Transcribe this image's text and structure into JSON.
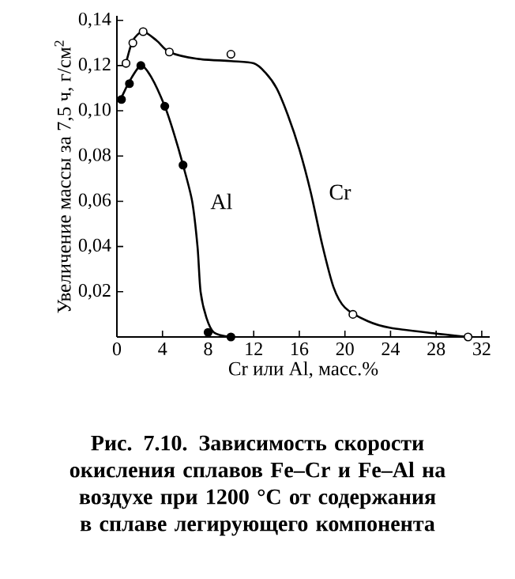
{
  "chart_data": {
    "type": "line",
    "xlabel": "Cr или Al, масс.%",
    "ylabel": "Увеличение массы за 7,5 ч, г/см$^{2}$",
    "xlim": [
      0,
      32.7
    ],
    "ylim": [
      0,
      0.142
    ],
    "xticks": [
      0,
      4,
      8,
      12,
      16,
      20,
      24,
      28,
      32
    ],
    "yticks": [
      {
        "value": 0.02,
        "label": "0,02"
      },
      {
        "value": 0.04,
        "label": "0,04"
      },
      {
        "value": 0.06,
        "label": "0,06"
      },
      {
        "value": 0.08,
        "label": "0,08"
      },
      {
        "value": 0.1,
        "label": "0,10"
      },
      {
        "value": 0.12,
        "label": "0,12"
      },
      {
        "value": 0.14,
        "label": "0,14"
      }
    ],
    "grid": false,
    "series": [
      {
        "name": "Cr",
        "marker": "none",
        "color": "#000000",
        "x": [
          0.8,
          1.4,
          2.3,
          3.5,
          4.6,
          7,
          10,
          12,
          13,
          14,
          15,
          16,
          17,
          18,
          19,
          20,
          22,
          24,
          28,
          30.8
        ],
        "values": [
          0.121,
          0.131,
          0.135,
          0.131,
          0.126,
          0.123,
          0.122,
          0.121,
          0.117,
          0.11,
          0.098,
          0.083,
          0.064,
          0.041,
          0.022,
          0.013,
          0.007,
          0.004,
          0.0015,
          0.0
        ]
      },
      {
        "name": "Al",
        "marker": "none",
        "color": "#000000",
        "x": [
          0,
          0.4,
          1.1,
          2.1,
          3,
          4.2,
          5,
          5.8,
          6.6,
          7.07,
          7.34,
          7.85,
          8.5,
          9.9
        ],
        "values": [
          0.104,
          0.106,
          0.113,
          0.12,
          0.115,
          0.102,
          0.09,
          0.076,
          0.06,
          0.04,
          0.02,
          0.0085,
          0.002,
          0.0
        ]
      },
      {
        "type": "scatter",
        "marker": "circle",
        "color": "#ffffff",
        "x": [
          0.8,
          1.4,
          2.3,
          4.6,
          10.0,
          20.7,
          30.8
        ],
        "values": [
          0.121,
          0.13,
          0.135,
          0.126,
          0.125,
          0.01,
          0.0
        ]
      },
      {
        "type": "scatter",
        "marker": "circle",
        "color": "#000000",
        "x": [
          0.4,
          1.1,
          2.1,
          4.2,
          5.8,
          8.0,
          10.0
        ],
        "values": [
          0.105,
          0.112,
          0.12,
          0.102,
          0.076,
          0.002,
          0.0
        ]
      }
    ],
    "annotations": [
      "**Рис. 7.10. Зависимость скорости окисления сплавов Fe–Cr и Fe–Al на воздухе при 1200 °C от содержания в сплаве легирующего компонента**"
    ]
  }
}
